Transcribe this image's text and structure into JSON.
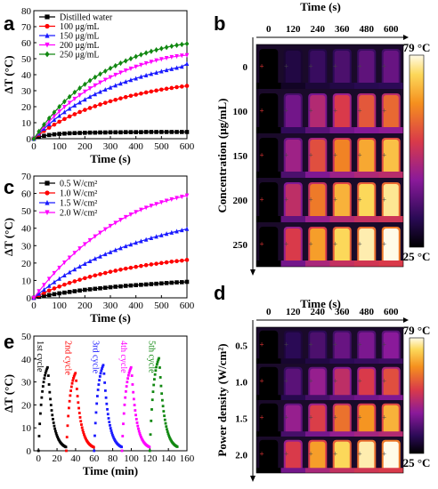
{
  "panels": {
    "a": "a",
    "b": "b",
    "c": "c",
    "d": "d",
    "e": "e"
  },
  "colors": {
    "black": "#000000",
    "red": "#ff0000",
    "blue": "#1a1aff",
    "magenta": "#ff00ff",
    "green": "#118811"
  },
  "chart_data": [
    {
      "id": "a",
      "type": "line",
      "xlabel": "Time (s)",
      "ylabel": "ΔT (°C)",
      "xlim": [
        0,
        600
      ],
      "ylim": [
        0,
        80
      ],
      "xticks": [
        0,
        100,
        200,
        300,
        400,
        500,
        600
      ],
      "yticks": [
        0,
        10,
        20,
        30,
        40,
        50,
        60,
        70,
        80
      ],
      "series": [
        {
          "name": "Distilled water",
          "color": "#000000",
          "marker": "square",
          "x": [
            0,
            20,
            40,
            60,
            80,
            100,
            120,
            140,
            160,
            180,
            200,
            220,
            240,
            260,
            280,
            300,
            320,
            340,
            360,
            380,
            400,
            420,
            440,
            460,
            480,
            500,
            520,
            540,
            560,
            580,
            600
          ],
          "y": [
            0,
            1.0,
            1.8,
            2.3,
            2.7,
            3.0,
            3.2,
            3.4,
            3.5,
            3.6,
            3.7,
            3.8,
            3.8,
            3.9,
            3.9,
            4.0,
            4.0,
            4.0,
            4.1,
            4.1,
            4.1,
            4.1,
            4.2,
            4.2,
            4.2,
            4.2,
            4.2,
            4.2,
            4.2,
            4.2,
            4.2
          ]
        },
        {
          "name": "100 μg/mL",
          "color": "#ff0000",
          "marker": "circle",
          "x": [
            0,
            20,
            40,
            60,
            80,
            100,
            120,
            140,
            160,
            180,
            200,
            220,
            240,
            260,
            280,
            300,
            320,
            340,
            360,
            380,
            400,
            420,
            440,
            460,
            480,
            500,
            520,
            540,
            560,
            580,
            600
          ],
          "y": [
            0,
            2.5,
            4.8,
            6.9,
            8.8,
            10.6,
            12.3,
            13.9,
            15.3,
            16.7,
            18.0,
            19.2,
            20.3,
            21.4,
            22.4,
            23.4,
            24.3,
            25.2,
            26.0,
            26.8,
            27.5,
            28.2,
            28.9,
            29.5,
            30.1,
            30.7,
            31.2,
            31.7,
            32.2,
            32.6,
            33.0
          ]
        },
        {
          "name": "150 μg/mL",
          "color": "#1a1aff",
          "marker": "triangle",
          "x": [
            0,
            20,
            40,
            60,
            80,
            100,
            120,
            140,
            160,
            180,
            200,
            220,
            240,
            260,
            280,
            300,
            320,
            340,
            360,
            380,
            400,
            420,
            440,
            460,
            480,
            500,
            520,
            540,
            560,
            580,
            600
          ],
          "y": [
            0,
            3.2,
            6.3,
            9.1,
            11.8,
            14.3,
            16.6,
            18.8,
            20.8,
            22.7,
            24.5,
            26.2,
            27.8,
            29.3,
            30.7,
            32.0,
            33.3,
            34.5,
            35.6,
            36.7,
            37.7,
            38.7,
            39.6,
            40.5,
            41.3,
            42.1,
            42.9,
            43.6,
            44.3,
            45.0,
            46.8
          ]
        },
        {
          "name": "200 μg/mL",
          "color": "#ff00ff",
          "marker": "triangle-down",
          "x": [
            0,
            20,
            40,
            60,
            80,
            100,
            120,
            140,
            160,
            180,
            200,
            220,
            240,
            260,
            280,
            300,
            320,
            340,
            360,
            380,
            400,
            420,
            440,
            460,
            480,
            500,
            520,
            540,
            560,
            580,
            600
          ],
          "y": [
            0,
            3.8,
            7.4,
            10.8,
            14.0,
            17.0,
            19.8,
            22.4,
            24.9,
            27.2,
            29.4,
            31.4,
            33.3,
            35.1,
            36.8,
            38.4,
            39.9,
            41.3,
            42.6,
            43.8,
            45.0,
            46.1,
            47.1,
            48.0,
            48.9,
            49.7,
            50.4,
            51.0,
            51.5,
            51.9,
            52.2
          ]
        },
        {
          "name": "250 μg/mL",
          "color": "#118811",
          "marker": "diamond",
          "x": [
            0,
            20,
            40,
            60,
            80,
            100,
            120,
            140,
            160,
            180,
            200,
            220,
            240,
            260,
            280,
            300,
            320,
            340,
            360,
            380,
            400,
            420,
            440,
            460,
            480,
            500,
            520,
            540,
            560,
            580,
            600
          ],
          "y": [
            0,
            4.5,
            8.8,
            12.8,
            16.5,
            20.0,
            23.2,
            26.2,
            29.0,
            31.6,
            34.0,
            36.3,
            38.4,
            40.4,
            42.2,
            44.0,
            45.6,
            47.2,
            48.6,
            50.0,
            51.3,
            52.5,
            53.6,
            54.6,
            55.5,
            56.3,
            57.1,
            57.8,
            58.4,
            58.9,
            59.3
          ]
        }
      ]
    },
    {
      "id": "c",
      "type": "line",
      "xlabel": "Time (s)",
      "ylabel": "ΔT (°C)",
      "xlim": [
        0,
        600
      ],
      "ylim": [
        0,
        70
      ],
      "xticks": [
        0,
        100,
        200,
        300,
        400,
        500,
        600
      ],
      "yticks": [
        0,
        10,
        20,
        30,
        40,
        50,
        60,
        70
      ],
      "series": [
        {
          "name": "0.5 W/cm²",
          "color": "#000000",
          "marker": "square",
          "x": [
            0,
            20,
            40,
            60,
            80,
            100,
            120,
            140,
            160,
            180,
            200,
            220,
            240,
            260,
            280,
            300,
            320,
            340,
            360,
            380,
            400,
            420,
            440,
            460,
            480,
            500,
            520,
            540,
            560,
            580,
            600
          ],
          "y": [
            0,
            0.6,
            1.1,
            1.6,
            2.1,
            2.6,
            3.0,
            3.4,
            3.8,
            4.2,
            4.6,
            4.9,
            5.2,
            5.5,
            5.8,
            6.1,
            6.4,
            6.6,
            6.9,
            7.1,
            7.3,
            7.5,
            7.7,
            7.9,
            8.1,
            8.3,
            8.5,
            8.7,
            8.9,
            9.0,
            9.2
          ]
        },
        {
          "name": "1.0 W/cm²",
          "color": "#ff0000",
          "marker": "circle",
          "x": [
            0,
            20,
            40,
            60,
            80,
            100,
            120,
            140,
            160,
            180,
            200,
            220,
            240,
            260,
            280,
            300,
            320,
            340,
            360,
            380,
            400,
            420,
            440,
            460,
            480,
            500,
            520,
            540,
            560,
            580,
            600
          ],
          "y": [
            0,
            1.5,
            2.9,
            4.2,
            5.4,
            6.5,
            7.6,
            8.6,
            9.5,
            10.4,
            11.3,
            12.1,
            12.9,
            13.6,
            14.3,
            15.0,
            15.6,
            16.2,
            16.8,
            17.3,
            17.8,
            18.3,
            18.8,
            19.2,
            19.6,
            20.0,
            20.4,
            20.8,
            21.1,
            21.4,
            21.8
          ]
        },
        {
          "name": "1.5 W/cm²",
          "color": "#1a1aff",
          "marker": "triangle",
          "x": [
            0,
            20,
            40,
            60,
            80,
            100,
            120,
            140,
            160,
            180,
            200,
            220,
            240,
            260,
            280,
            300,
            320,
            340,
            360,
            380,
            400,
            420,
            440,
            460,
            480,
            500,
            520,
            540,
            560,
            580,
            600
          ],
          "y": [
            0,
            2.4,
            4.7,
            6.9,
            9.0,
            11.0,
            12.9,
            14.7,
            16.4,
            18.0,
            19.6,
            21.1,
            22.5,
            23.8,
            25.1,
            26.3,
            27.5,
            28.6,
            29.7,
            30.7,
            31.7,
            32.6,
            33.5,
            34.4,
            35.2,
            36.0,
            36.8,
            37.5,
            38.2,
            38.9,
            39.6
          ]
        },
        {
          "name": "2.0 W/cm²",
          "color": "#ff00ff",
          "marker": "triangle-down",
          "x": [
            0,
            20,
            40,
            60,
            80,
            100,
            120,
            140,
            160,
            180,
            200,
            220,
            240,
            260,
            280,
            300,
            320,
            340,
            360,
            380,
            400,
            420,
            440,
            460,
            480,
            500,
            520,
            540,
            560,
            580,
            600
          ],
          "y": [
            0,
            3.8,
            7.4,
            10.9,
            14.2,
            17.3,
            20.3,
            23.1,
            25.8,
            28.4,
            30.8,
            33.1,
            35.3,
            37.4,
            39.4,
            41.3,
            43.1,
            44.8,
            46.4,
            47.9,
            49.3,
            50.6,
            51.8,
            52.9,
            53.9,
            54.9,
            55.8,
            56.6,
            57.4,
            58.1,
            58.8
          ]
        }
      ]
    },
    {
      "id": "e",
      "type": "scatter",
      "xlabel": "Time (min)",
      "ylabel": "ΔT (°C)",
      "xlim": [
        -5,
        160
      ],
      "ylim": [
        0,
        50
      ],
      "xticks": [
        0,
        20,
        40,
        60,
        80,
        100,
        120,
        140,
        160
      ],
      "yticks": [
        0,
        10,
        20,
        30,
        40,
        50
      ],
      "annotations": [
        "1st cycle",
        "2nd cycle",
        "3rd cycle",
        "4th cycle",
        "5th cycle"
      ],
      "series": [
        {
          "name": "1st cycle",
          "color": "#000000",
          "start": 0
        },
        {
          "name": "2nd cycle",
          "color": "#ff0000",
          "start": 30
        },
        {
          "name": "3rd cycle",
          "color": "#1a1aff",
          "start": 60
        },
        {
          "name": "4th cycle",
          "color": "#ff00ff",
          "start": 90
        },
        {
          "name": "5th cycle",
          "color": "#118811",
          "start": 120
        }
      ],
      "cycle_profile": {
        "heat_min": 10,
        "cool_min": 20,
        "peaks": [
          36.5,
          34.0,
          37.5,
          36.5,
          40.5
        ]
      }
    }
  ],
  "thermal_b": {
    "header": "Time (s)",
    "ylabel": "Concentration (μg/mL)",
    "cols": [
      "0",
      "120",
      "240",
      "360",
      "480",
      "600"
    ],
    "rows": [
      "0",
      "100",
      "150",
      "200",
      "250"
    ],
    "scale_max": "79 °C",
    "scale_min": "25 °C",
    "intensity": [
      [
        0,
        0.12,
        0.18,
        0.22,
        0.26,
        0.28
      ],
      [
        0,
        0.3,
        0.45,
        0.55,
        0.62,
        0.66
      ],
      [
        0,
        0.4,
        0.6,
        0.72,
        0.8,
        0.85
      ],
      [
        0,
        0.48,
        0.7,
        0.82,
        0.9,
        0.94
      ],
      [
        0,
        0.55,
        0.78,
        0.9,
        0.96,
        1.0
      ]
    ]
  },
  "thermal_d": {
    "header": "Time (s)",
    "ylabel": "Power density (W/cm²)",
    "cols": [
      "0",
      "120",
      "240",
      "360",
      "480",
      "600"
    ],
    "rows": [
      "0.5",
      "1.0",
      "1.5",
      "2.0"
    ],
    "scale_max": "79 °C",
    "scale_min": "25 °C",
    "intensity": [
      [
        0,
        0.15,
        0.22,
        0.28,
        0.32,
        0.35
      ],
      [
        0,
        0.25,
        0.38,
        0.48,
        0.55,
        0.6
      ],
      [
        0,
        0.38,
        0.56,
        0.68,
        0.76,
        0.82
      ],
      [
        0,
        0.55,
        0.78,
        0.9,
        0.96,
        1.0
      ]
    ]
  }
}
